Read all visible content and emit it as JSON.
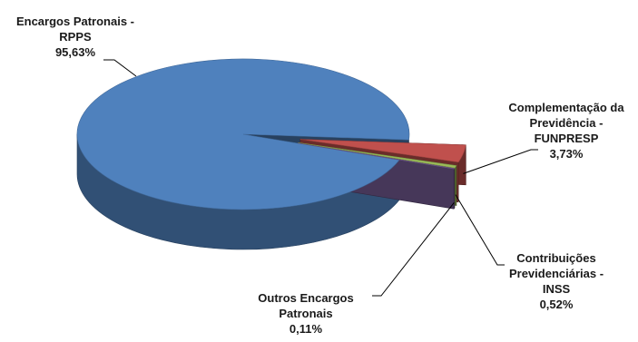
{
  "chart_data": {
    "type": "pie",
    "style": "3d-exploded",
    "legend": "none",
    "slices": [
      {
        "name_lines": [
          "Encargos Patronais -",
          "RPPS"
        ],
        "value": 95.63,
        "value_label": "95,63%",
        "color": "#4f81bd"
      },
      {
        "name_lines": [
          "Complementação da",
          "Previdência -",
          "FUNPRESP"
        ],
        "value": 3.73,
        "value_label": "3,73%",
        "color": "#c0504d"
      },
      {
        "name_lines": [
          "Contribuições",
          "Previdenciárias -",
          "INSS"
        ],
        "value": 0.52,
        "value_label": "0,52%",
        "color": "#9bbb59"
      },
      {
        "name_lines": [
          "Outros Encargos",
          "Patronais"
        ],
        "value": 0.11,
        "value_label": "0,11%",
        "color": "#8064a2"
      }
    ]
  }
}
